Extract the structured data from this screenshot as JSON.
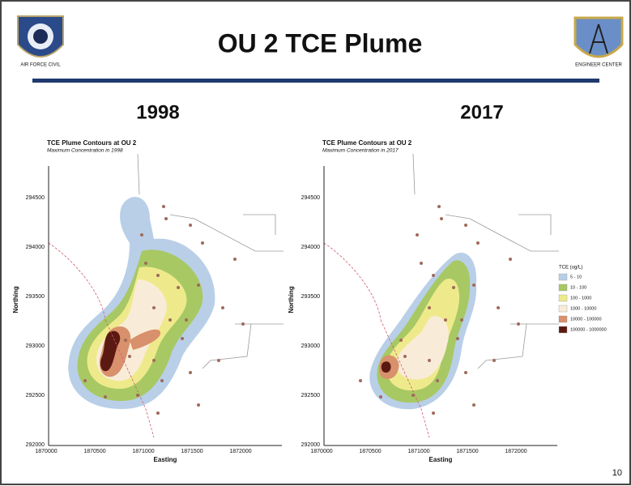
{
  "slide": {
    "title": "OU 2 TCE Plume",
    "page_number": "10"
  },
  "panels": [
    {
      "year": "1998",
      "map_title": "TCE Plume Contours at OU 2",
      "map_subtitle": "Maximum Concentration in 1998",
      "y_label": "Northing",
      "x_label": "Easting",
      "yticks": [
        "292000",
        "292500",
        "293000",
        "293500",
        "294000",
        "294500"
      ],
      "xticks": [
        "1870000",
        "1870500",
        "1871000",
        "1871500",
        "1872000"
      ]
    },
    {
      "year": "2017",
      "map_title": "TCE Plume Contours at OU 2",
      "map_subtitle": "Maximum Concentration in 2017",
      "y_label": "Northing",
      "x_label": "Easting",
      "yticks": [
        "292000",
        "292500",
        "293000",
        "293500",
        "294000",
        "294500"
      ],
      "xticks": [
        "1870000",
        "1870500",
        "1871000",
        "1871500",
        "1872000"
      ]
    }
  ],
  "legend": {
    "title": "TCE (ug/L)",
    "items": [
      {
        "label": "5 - 10",
        "color": "#b9cfe8"
      },
      {
        "label": "10 - 100",
        "color": "#a8c864"
      },
      {
        "label": "100 - 1000",
        "color": "#eeea8c"
      },
      {
        "label": "1000 - 10000",
        "color": "#f8ecd8"
      },
      {
        "label": "10000 - 100000",
        "color": "#d9906c"
      },
      {
        "label": "100000 - 1000000",
        "color": "#5a1a12"
      }
    ]
  }
}
